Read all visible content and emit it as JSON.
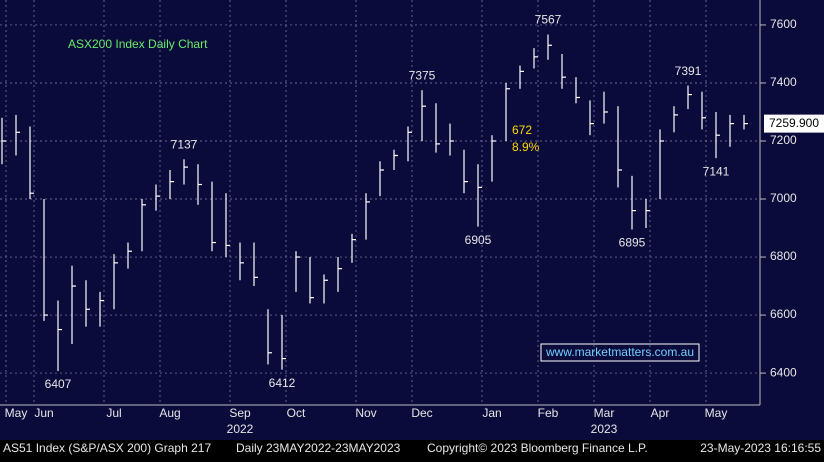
{
  "chart_data": {
    "type": "ohlc",
    "title": "ASX200 Index Daily Chart",
    "categories": [
      null,
      "May",
      null,
      "Jun",
      null,
      null,
      null,
      null,
      "Jul",
      null,
      null,
      null,
      "Aug",
      null,
      null,
      null,
      null,
      "Sep",
      null,
      null,
      null,
      "Oct",
      null,
      null,
      null,
      null,
      "Nov",
      null,
      null,
      null,
      "Dec",
      null,
      null,
      null,
      null,
      "Jan",
      null,
      null,
      null,
      "Feb",
      null,
      null,
      null,
      "Mar",
      null,
      null,
      null,
      "Apr",
      null,
      null,
      null,
      "May",
      null,
      null
    ],
    "year_labels": [
      {
        "label": "2022",
        "at": 17
      },
      {
        "label": "2023",
        "at": 43
      }
    ],
    "series": [
      {
        "color": "#ffffff",
        "high": [
          7280,
          7290,
          7250,
          7000,
          6650,
          6770,
          6720,
          6680,
          6810,
          6850,
          7000,
          7050,
          7100,
          7137,
          7120,
          7060,
          7020,
          6850,
          6850,
          6620,
          6600,
          6820,
          6800,
          6740,
          6800,
          6880,
          7020,
          7130,
          7170,
          7250,
          7375,
          7330,
          7260,
          7170,
          7120,
          7220,
          7400,
          7460,
          7520,
          7567,
          7500,
          7420,
          7340,
          7370,
          7320,
          7080,
          7000,
          7240,
          7320,
          7391,
          7370,
          7300,
          7290,
          7290
        ],
        "low": [
          7120,
          7150,
          7000,
          6580,
          6407,
          6500,
          6560,
          6560,
          6620,
          6760,
          6820,
          6960,
          7000,
          7050,
          6980,
          6820,
          6800,
          6720,
          6700,
          6430,
          6412,
          6680,
          6640,
          6640,
          6680,
          6780,
          6860,
          7010,
          7100,
          7130,
          7200,
          7160,
          7150,
          7020,
          6905,
          7060,
          7200,
          7380,
          7450,
          7480,
          7380,
          7330,
          7220,
          7260,
          7040,
          6895,
          6900,
          7000,
          7230,
          7310,
          7240,
          7141,
          7180,
          7240
        ],
        "close": [
          7200,
          7230,
          7020,
          6600,
          6550,
          6700,
          6620,
          6650,
          6780,
          6820,
          6980,
          7010,
          7060,
          7110,
          7050,
          6850,
          6840,
          6780,
          6730,
          6470,
          6450,
          6800,
          6660,
          6720,
          6760,
          6860,
          6990,
          7100,
          7150,
          7230,
          7320,
          7190,
          7200,
          7060,
          7040,
          7200,
          7380,
          7440,
          7490,
          7530,
          7420,
          7350,
          7260,
          7300,
          7100,
          6960,
          6960,
          7200,
          7290,
          7360,
          7280,
          7220,
          7260,
          7259.9
        ]
      }
    ],
    "ylim": [
      6290,
      7686
    ],
    "yticks": [
      6400,
      6600,
      6800,
      7000,
      7200,
      7400,
      7600
    ],
    "grid": true,
    "last_price": {
      "value": 7259.9,
      "label": "7259.900"
    },
    "annotations": [
      {
        "value": 7137,
        "index": 13,
        "side": "above"
      },
      {
        "value": 6407,
        "index": 4,
        "side": "below"
      },
      {
        "value": 7375,
        "index": 30,
        "side": "above"
      },
      {
        "value": 6412,
        "index": 20,
        "side": "below"
      },
      {
        "value": 6905,
        "index": 34,
        "side": "below"
      },
      {
        "value": 7567,
        "index": 39,
        "side": "above"
      },
      {
        "value": 6895,
        "index": 45,
        "side": "below"
      },
      {
        "value": 7391,
        "index": 49,
        "side": "above"
      },
      {
        "value": 7141,
        "index": 51,
        "side": "below"
      }
    ],
    "change_note": {
      "points": 672,
      "percent": "8.9%",
      "color": "#ffd700"
    },
    "watermark": "www.marketmatters.com.au",
    "footer": {
      "security": "AS51 Index (S&P/ASX 200) Graph 217",
      "range": "Daily 23MAY2022-23MAY2023",
      "copyright": "Copyright© 2023 Bloomberg Finance L.P.",
      "timestamp": "23-May-2023 16:16:55"
    }
  }
}
